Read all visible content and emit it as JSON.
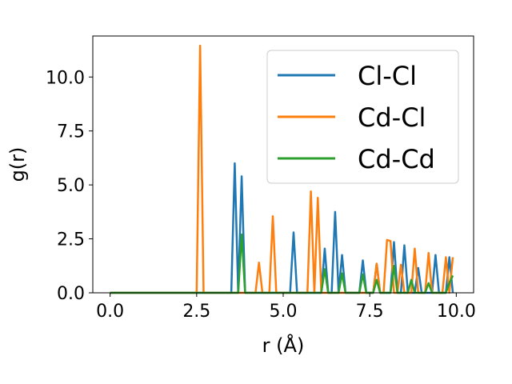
{
  "chart_data": {
    "type": "line",
    "xlabel": "r (Å)",
    "ylabel": "g(r)",
    "xlim": [
      -0.5,
      10.5
    ],
    "ylim": [
      0,
      11.9
    ],
    "xticks": [
      0.0,
      2.5,
      5.0,
      7.5,
      10.0
    ],
    "xtick_labels": [
      "0.0",
      "2.5",
      "5.0",
      "7.5",
      "10.0"
    ],
    "yticks": [
      0.0,
      2.5,
      5.0,
      7.5,
      10.0
    ],
    "ytick_labels": [
      "0.0",
      "2.5",
      "5.0",
      "7.5",
      "10.0"
    ],
    "grid": false,
    "legend_position": "top-right",
    "series": [
      {
        "name": "Cl-Cl",
        "color": "#1f77b4",
        "points": [
          [
            0,
            0
          ],
          [
            3.5,
            0
          ],
          [
            3.6,
            6.0
          ],
          [
            3.7,
            0
          ],
          [
            3.8,
            5.4
          ],
          [
            3.9,
            0
          ],
          [
            5.2,
            0
          ],
          [
            5.3,
            2.8
          ],
          [
            5.4,
            0
          ],
          [
            6.1,
            0
          ],
          [
            6.2,
            2.05
          ],
          [
            6.3,
            0
          ],
          [
            6.4,
            0
          ],
          [
            6.5,
            3.75
          ],
          [
            6.6,
            0
          ],
          [
            6.7,
            1.75
          ],
          [
            6.8,
            0
          ],
          [
            7.2,
            0
          ],
          [
            7.3,
            1.5
          ],
          [
            7.4,
            0
          ],
          [
            7.6,
            0
          ],
          [
            7.7,
            1.35
          ],
          [
            7.8,
            0
          ],
          [
            8.1,
            0
          ],
          [
            8.2,
            2.35
          ],
          [
            8.3,
            0
          ],
          [
            8.4,
            0
          ],
          [
            8.5,
            2.2
          ],
          [
            8.6,
            0
          ],
          [
            8.8,
            0
          ],
          [
            8.9,
            1.15
          ],
          [
            9.0,
            0
          ],
          [
            9.3,
            0
          ],
          [
            9.4,
            1.75
          ],
          [
            9.5,
            0
          ],
          [
            9.7,
            0
          ],
          [
            9.8,
            1.65
          ],
          [
            9.9,
            0
          ]
        ]
      },
      {
        "name": "Cd-Cl",
        "color": "#ff7f0e",
        "points": [
          [
            0,
            0
          ],
          [
            2.5,
            0
          ],
          [
            2.6,
            11.45
          ],
          [
            2.7,
            0
          ],
          [
            4.2,
            0
          ],
          [
            4.3,
            1.4
          ],
          [
            4.4,
            0
          ],
          [
            4.6,
            0
          ],
          [
            4.7,
            3.55
          ],
          [
            4.8,
            0
          ],
          [
            5.7,
            0
          ],
          [
            5.8,
            4.7
          ],
          [
            5.9,
            0
          ],
          [
            6.0,
            4.4
          ],
          [
            6.1,
            0
          ],
          [
            7.6,
            0
          ],
          [
            7.7,
            1.35
          ],
          [
            7.8,
            0
          ],
          [
            7.9,
            0
          ],
          [
            8.0,
            2.45
          ],
          [
            8.1,
            2.4
          ],
          [
            8.2,
            0
          ],
          [
            8.3,
            0
          ],
          [
            8.4,
            1.3
          ],
          [
            8.5,
            0
          ],
          [
            8.7,
            0
          ],
          [
            8.8,
            2.05
          ],
          [
            8.9,
            0
          ],
          [
            9.1,
            0
          ],
          [
            9.2,
            1.85
          ],
          [
            9.3,
            0
          ],
          [
            9.6,
            0
          ],
          [
            9.7,
            1.65
          ],
          [
            9.8,
            0
          ],
          [
            9.9,
            1.65
          ]
        ]
      },
      {
        "name": "Cd-Cd",
        "color": "#2ca02c",
        "points": [
          [
            0,
            0
          ],
          [
            3.7,
            0
          ],
          [
            3.8,
            2.7
          ],
          [
            3.9,
            0
          ],
          [
            6.1,
            0
          ],
          [
            6.2,
            1.1
          ],
          [
            6.3,
            0
          ],
          [
            6.6,
            0
          ],
          [
            6.7,
            0.9
          ],
          [
            6.8,
            0
          ],
          [
            7.2,
            0
          ],
          [
            7.3,
            0.85
          ],
          [
            7.4,
            0
          ],
          [
            7.6,
            0
          ],
          [
            7.7,
            0.6
          ],
          [
            7.8,
            0
          ],
          [
            8.1,
            0
          ],
          [
            8.2,
            1.25
          ],
          [
            8.3,
            0
          ],
          [
            8.6,
            0
          ],
          [
            8.7,
            0.6
          ],
          [
            8.8,
            0
          ],
          [
            9.1,
            0
          ],
          [
            9.2,
            0.45
          ],
          [
            9.3,
            0
          ],
          [
            9.7,
            0
          ],
          [
            9.8,
            0.45
          ],
          [
            9.9,
            0.8
          ]
        ]
      }
    ]
  }
}
